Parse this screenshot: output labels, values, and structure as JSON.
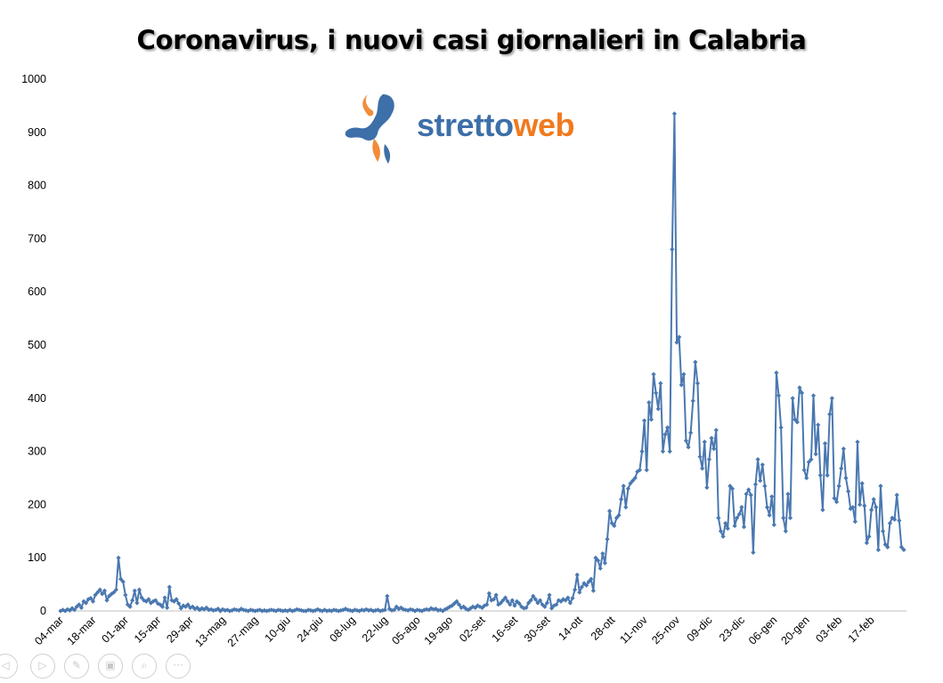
{
  "chart_data": {
    "type": "line",
    "title": "Coronavirus, i nuovi casi giornalieri in Calabria",
    "ylim": [
      0,
      1000
    ],
    "yticks": [
      0,
      100,
      200,
      300,
      400,
      500,
      600,
      700,
      800,
      900,
      1000
    ],
    "x_tick_labels": [
      "04-mar",
      "18-mar",
      "01-apr",
      "15-apr",
      "29-apr",
      "13-mag",
      "27-mag",
      "10-giu",
      "24-giu",
      "08-lug",
      "22-lug",
      "05-ago",
      "19-ago",
      "02-set",
      "16-set",
      "30-set",
      "14-ott",
      "28-ott",
      "11-nov",
      "25-nov",
      "09-dic",
      "23-dic",
      "06-gen",
      "20-gen",
      "03-feb",
      "17-feb"
    ],
    "x_tick_interval_days": 14,
    "grid": false,
    "legend": "none",
    "series_color": "#4a78b0",
    "series": [
      {
        "values": [
          0,
          2,
          0,
          3,
          1,
          5,
          2,
          8,
          12,
          6,
          18,
          15,
          22,
          24,
          18,
          30,
          35,
          40,
          32,
          38,
          20,
          28,
          32,
          35,
          40,
          100,
          60,
          55,
          30,
          12,
          8,
          20,
          38,
          15,
          40,
          25,
          20,
          18,
          22,
          15,
          18,
          20,
          14,
          12,
          8,
          25,
          6,
          45,
          20,
          18,
          22,
          14,
          5,
          10,
          8,
          12,
          6,
          8,
          4,
          6,
          2,
          5,
          3,
          6,
          2,
          3,
          1,
          2,
          4,
          0,
          3,
          1,
          2,
          0,
          1,
          3,
          2,
          1,
          4,
          2,
          1,
          0,
          2,
          1,
          0,
          1,
          2,
          0,
          1,
          0,
          1,
          2,
          1,
          0,
          2,
          1,
          0,
          1,
          0,
          2,
          0,
          1,
          3,
          2,
          1,
          0,
          0,
          2,
          1,
          0,
          1,
          3,
          1,
          0,
          2,
          0,
          1,
          0,
          2,
          1,
          0,
          1,
          2,
          4,
          2,
          1,
          0,
          2,
          1,
          0,
          2,
          1,
          3,
          1,
          2,
          0,
          1,
          2,
          0,
          1,
          2,
          28,
          4,
          1,
          2,
          8,
          4,
          6,
          3,
          2,
          1,
          3,
          2,
          0,
          2,
          1,
          0,
          2,
          3,
          2,
          5,
          3,
          4,
          1,
          2,
          0,
          3,
          5,
          8,
          10,
          14,
          18,
          12,
          6,
          8,
          4,
          2,
          5,
          8,
          6,
          10,
          8,
          6,
          10,
          12,
          33,
          20,
          22,
          30,
          12,
          15,
          20,
          25,
          18,
          12,
          20,
          10,
          18,
          14,
          8,
          5,
          6,
          15,
          20,
          28,
          22,
          15,
          20,
          12,
          8,
          15,
          30,
          5,
          10,
          12,
          20,
          18,
          22,
          20,
          25,
          15,
          24,
          40,
          68,
          35,
          45,
          52,
          48,
          55,
          60,
          38,
          100,
          95,
          80,
          108,
          90,
          135,
          188,
          165,
          160,
          175,
          180,
          210,
          235,
          195,
          230,
          240,
          245,
          250,
          262,
          265,
          300,
          358,
          265,
          392,
          360,
          445,
          410,
          380,
          428,
          300,
          332,
          345,
          300,
          680,
          935,
          505,
          515,
          425,
          445,
          320,
          308,
          335,
          395,
          468,
          428,
          290,
          268,
          318,
          232,
          285,
          325,
          305,
          340,
          175,
          150,
          140,
          165,
          155,
          235,
          230,
          160,
          175,
          182,
          195,
          158,
          220,
          228,
          218,
          110,
          238,
          285,
          245,
          275,
          235,
          195,
          180,
          215,
          162,
          448,
          405,
          345,
          175,
          150,
          220,
          175,
          400,
          360,
          355,
          420,
          410,
          265,
          250,
          280,
          285,
          405,
          295,
          350,
          255,
          190,
          315,
          255,
          370,
          400,
          212,
          205,
          235,
          268,
          305,
          250,
          225,
          192,
          195,
          168,
          318,
          200,
          240,
          198,
          128,
          140,
          190,
          210,
          195,
          115,
          235,
          150,
          125,
          120,
          165,
          175,
          172,
          218,
          170,
          120,
          115
        ]
      }
    ]
  },
  "logo": {
    "name": "strettoweb",
    "text_part1": "stretto",
    "text_part2": "web"
  },
  "controls": {
    "icons": [
      "prev-icon",
      "next-icon",
      "pen-icon",
      "slides-icon",
      "zoom-icon",
      "more-icon"
    ]
  }
}
